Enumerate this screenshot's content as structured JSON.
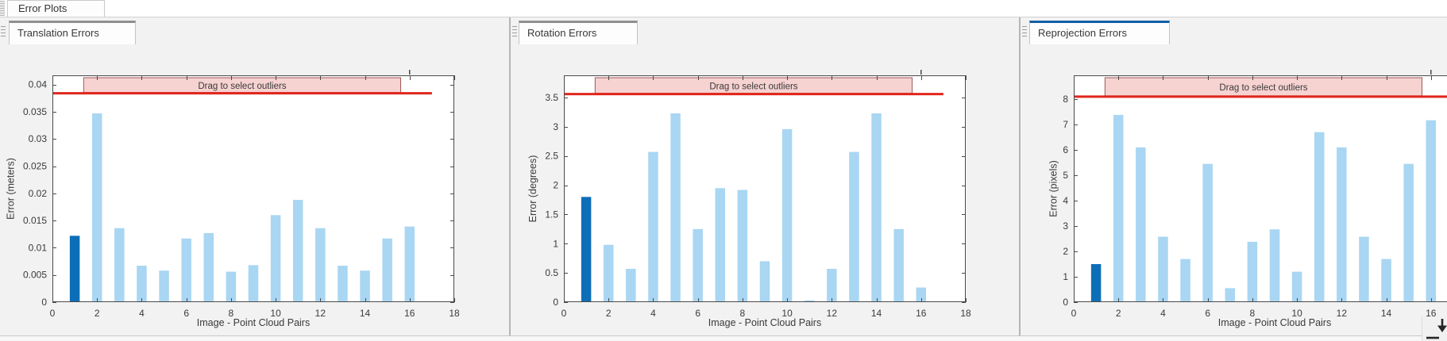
{
  "window": {
    "title_tab": "Error Plots"
  },
  "icons": {
    "top_grip": "vertical-drag-grip",
    "panel_grip": "panel-drag-grip",
    "corner": "dock-down-arrow"
  },
  "colors": {
    "bar": "#a9d6f2",
    "bar_selected": "#0d6eb8",
    "threshold_line": "#e1261c",
    "band_fill": "#f6d2d1",
    "band_border": "#9c5a58",
    "band_text": "#4d4343",
    "axis": "#4a4a4a",
    "tab_accent_inactive": "#8f8f8f",
    "tab_accent_active": "#115fa6"
  },
  "panels": [
    {
      "tab": "Translation Errors",
      "active": false
    },
    {
      "tab": "Rotation Errors",
      "active": false
    },
    {
      "tab": "Reprojection Errors",
      "active": true
    }
  ],
  "chart_data": [
    {
      "type": "bar",
      "title": "Translation Errors",
      "xlabel": "Image - Point Cloud Pairs",
      "ylabel": "Error (meters)",
      "categories": [
        1,
        2,
        3,
        4,
        5,
        6,
        7,
        8,
        9,
        10,
        11,
        12,
        13,
        14,
        15,
        16
      ],
      "values": [
        0.0122,
        0.0347,
        0.0136,
        0.0067,
        0.0058,
        0.0117,
        0.0127,
        0.0056,
        0.0068,
        0.016,
        0.0188,
        0.0136,
        0.0067,
        0.0058,
        0.0117,
        0.0139
      ],
      "selected_bar_index": 0,
      "threshold": 0.0384,
      "threshold_x_extent": [
        0,
        17
      ],
      "band": {
        "label": "Drag to select outliers",
        "x_start": 1.4,
        "x_end": 15.6,
        "handle_x": 16
      },
      "xlim": [
        0,
        18
      ],
      "ylim": [
        0,
        0.0417
      ],
      "xticks": [
        0,
        2,
        4,
        6,
        8,
        10,
        12,
        14,
        16,
        18
      ],
      "yticks": [
        0,
        0.005,
        0.01,
        0.015,
        0.02,
        0.025,
        0.03,
        0.035,
        0.04
      ],
      "ytick_labels": [
        "0",
        "0.005",
        "0.01",
        "0.015",
        "0.02",
        "0.025",
        "0.03",
        "0.035",
        "0.04"
      ],
      "grid": false,
      "legend": null
    },
    {
      "type": "bar",
      "title": "Rotation Errors",
      "xlabel": "Image - Point Cloud Pairs",
      "ylabel": "Error (degrees)",
      "categories": [
        1,
        2,
        3,
        4,
        5,
        6,
        7,
        8,
        9,
        10,
        11,
        12,
        13,
        14,
        15,
        16
      ],
      "values": [
        1.8,
        0.98,
        0.57,
        2.57,
        3.23,
        1.25,
        1.95,
        1.92,
        0.7,
        2.96,
        0.03,
        0.57,
        2.57,
        3.23,
        1.25,
        0.25
      ],
      "selected_bar_index": 0,
      "threshold": 3.56,
      "threshold_x_extent": [
        0,
        17
      ],
      "band": {
        "label": "Drag to select outliers",
        "x_start": 1.4,
        "x_end": 15.6,
        "handle_x": 16
      },
      "xlim": [
        0,
        18
      ],
      "ylim": [
        0,
        3.88
      ],
      "xticks": [
        0,
        2,
        4,
        6,
        8,
        10,
        12,
        14,
        16,
        18
      ],
      "yticks": [
        0,
        0.5,
        1,
        1.5,
        2,
        2.5,
        3,
        3.5
      ],
      "ytick_labels": [
        "0",
        "0.5",
        "1",
        "1.5",
        "2",
        "2.5",
        "3",
        "3.5"
      ],
      "grid": false,
      "legend": null
    },
    {
      "type": "bar",
      "title": "Reprojection Errors",
      "xlabel": "Image - Point Cloud Pairs",
      "ylabel": "Error (pixels)",
      "categories": [
        1,
        2,
        3,
        4,
        5,
        6,
        7,
        8,
        9,
        10,
        11,
        12,
        13,
        14,
        15,
        16
      ],
      "values": [
        1.5,
        7.38,
        6.1,
        2.58,
        1.7,
        5.45,
        0.55,
        2.38,
        2.87,
        1.2,
        6.7,
        6.1,
        2.58,
        1.7,
        5.45,
        7.17
      ],
      "selected_bar_index": 0,
      "threshold": 8.1,
      "threshold_x_extent": [
        0,
        17
      ],
      "band": {
        "label": "Drag to select outliers",
        "x_start": 1.4,
        "x_end": 15.6,
        "handle_x": 16
      },
      "xlim": [
        0,
        18
      ],
      "ylim": [
        0,
        8.94
      ],
      "xticks": [
        0,
        2,
        4,
        6,
        8,
        10,
        12,
        14,
        16,
        18
      ],
      "yticks": [
        0,
        1,
        2,
        3,
        4,
        5,
        6,
        7,
        8
      ],
      "ytick_labels": [
        "0",
        "1",
        "2",
        "3",
        "4",
        "5",
        "6",
        "7",
        "8"
      ],
      "grid": false,
      "legend": null
    }
  ]
}
